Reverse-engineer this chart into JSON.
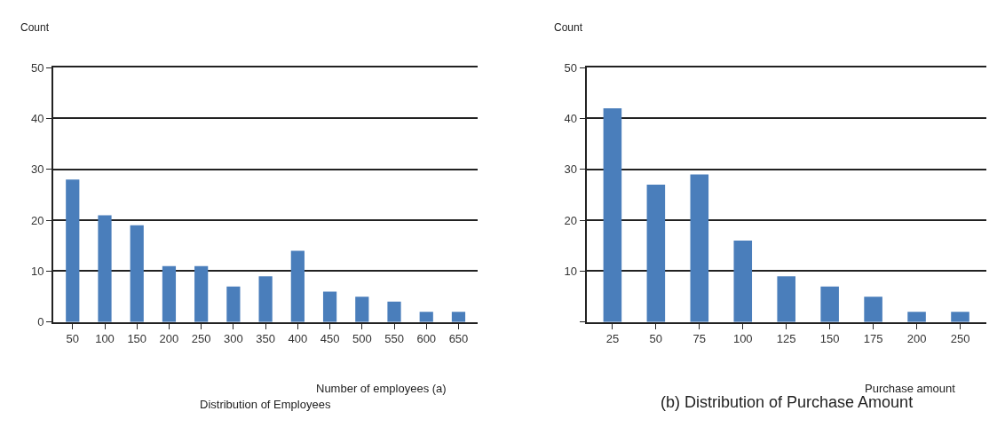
{
  "chart_data": [
    {
      "type": "bar",
      "title": "Distribution of Employees",
      "xlabel": "Number of employees (a)",
      "ylabel": "Count",
      "categories": [
        "50",
        "100",
        "150",
        "200",
        "250",
        "300",
        "350",
        "400",
        "450",
        "500",
        "550",
        "600",
        "650"
      ],
      "values": [
        28,
        21,
        19,
        11,
        11,
        7,
        9,
        14,
        6,
        5,
        4,
        2,
        2
      ],
      "color": "#4a7ebb",
      "ylim": [
        0,
        50
      ],
      "yticks": [
        0,
        10,
        20,
        30,
        40,
        50
      ],
      "grid": "y"
    },
    {
      "type": "bar",
      "title": "(b) Distribution of Purchase Amount",
      "xlabel": "Purchase amount",
      "ylabel": "Count",
      "categories": [
        "25",
        "50",
        "75",
        "100",
        "125",
        "150",
        "175",
        "200",
        "250"
      ],
      "values": [
        42,
        27,
        29,
        16,
        9,
        7,
        5,
        2,
        2
      ],
      "color": "#4a7ebb",
      "ylim": [
        0,
        50
      ],
      "yticks": [
        {
          "value": 0,
          "label": null
        },
        10,
        20,
        30,
        40,
        50
      ],
      "grid": "y"
    }
  ]
}
